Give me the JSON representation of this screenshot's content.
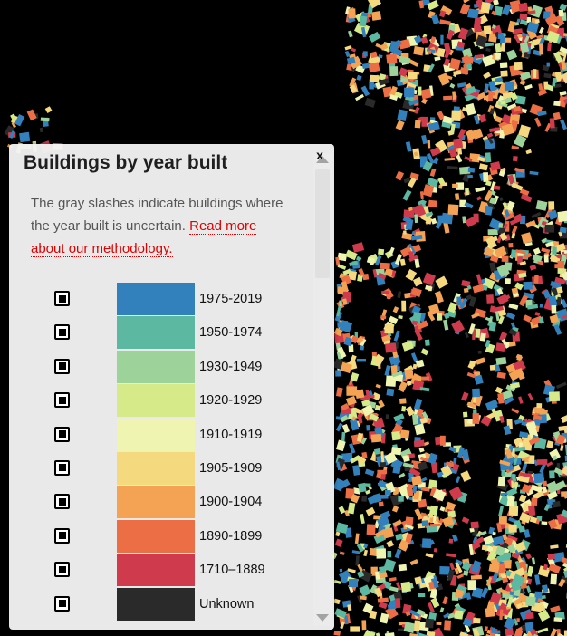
{
  "panel": {
    "close_label": "x",
    "title": "Buildings by year built",
    "description": "The gray slashes indicate buildings where the year built is uncertain.",
    "link_text": "Read more about our methodology."
  },
  "legend": [
    {
      "label": "1975-2019",
      "color": "#3281bc"
    },
    {
      "label": "1950-1974",
      "color": "#5cb8a0"
    },
    {
      "label": "1930-1949",
      "color": "#9dd39b"
    },
    {
      "label": "1920-1929",
      "color": "#d7ea8a"
    },
    {
      "label": "1910-1919",
      "color": "#eff4b1"
    },
    {
      "label": "1905-1909",
      "color": "#f5d97e"
    },
    {
      "label": "1900-1904",
      "color": "#f3a353"
    },
    {
      "label": "1890-1899",
      "color": "#ec6e45"
    },
    {
      "label": "1710–1889",
      "color": "#cf3a4d"
    },
    {
      "label": "Unknown",
      "color": "#2a2a2a"
    }
  ]
}
